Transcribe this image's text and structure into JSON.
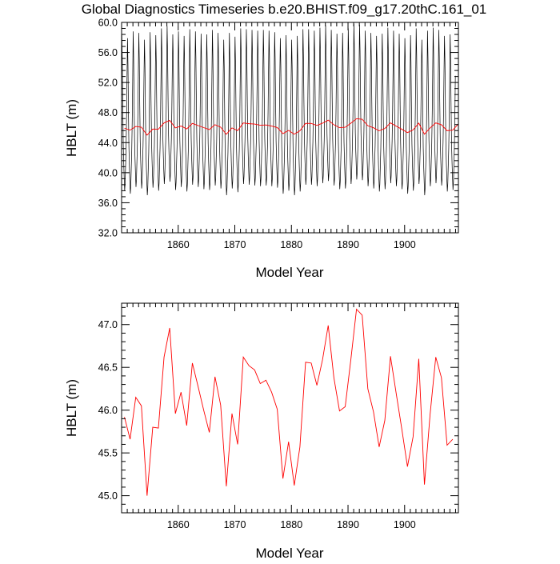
{
  "title": "Global Diagnostics Timeseries b.e20.BHIST.f09_g17.20thC.161_01",
  "chart_data": [
    {
      "type": "line",
      "xlabel": "Model Year",
      "ylabel": "HBLT (m)",
      "xlim": [
        1850,
        1909.5
      ],
      "ylim": [
        32.0,
        60.0
      ],
      "x_ticks": [
        1860,
        1870,
        1880,
        1890,
        1900
      ],
      "x_tick_labels": [
        "1860",
        "1870",
        "1880",
        "1890",
        "1900"
      ],
      "y_ticks": [
        32,
        36,
        40,
        44,
        48,
        52,
        56,
        60
      ],
      "y_tick_labels": [
        "32.0",
        "36.0",
        "40.0",
        "44.0",
        "48.0",
        "52.0",
        "56.0",
        "60.0"
      ],
      "grid": false,
      "series": [
        {
          "color": "#000000",
          "monthly_pattern": [
            58.5,
            55.0,
            49.0,
            44.0,
            41.5,
            39.5,
            37.8,
            38.8,
            41.2,
            43.5,
            47.5,
            53.0
          ],
          "annual_offsets": [
            -0.2,
            -0.6,
            0.3,
            0.1,
            -0.8,
            0.2,
            -0.2,
            0.7,
            1.0,
            -0.1,
            0.3,
            -0.3,
            0.6,
            0.3,
            0.0,
            -0.1,
            0.5,
            0.1,
            -0.8,
            0.1,
            -0.4,
            0.7,
            0.6,
            0.5,
            0.4,
            0.5,
            0.4,
            0.2,
            -0.6,
            -0.2,
            -0.8,
            -0.3,
            0.6,
            0.6,
            0.4,
            0.8,
            1.1,
            0.5,
            0.0,
            0.1,
            0.7,
            1.3,
            1.2,
            0.4,
            0.1,
            -0.3,
            0.0,
            0.8,
            0.4,
            0.0,
            -0.6,
            -0.2,
            0.7,
            -0.8,
            0.4,
            0.8,
            0.5,
            -0.3,
            -0.1
          ]
        },
        {
          "color": "#ff0000",
          "x": [
            1850.5,
            1851.5,
            1852.5,
            1853.5,
            1854.5,
            1855.5,
            1856.5,
            1857.5,
            1858.5,
            1859.5,
            1860.5,
            1861.5,
            1862.5,
            1863.5,
            1864.5,
            1865.5,
            1866.5,
            1867.5,
            1868.5,
            1869.5,
            1870.5,
            1871.5,
            1872.5,
            1873.5,
            1874.5,
            1875.5,
            1876.5,
            1877.5,
            1878.5,
            1879.5,
            1880.5,
            1881.5,
            1882.5,
            1883.5,
            1884.5,
            1885.5,
            1886.5,
            1887.5,
            1888.5,
            1889.5,
            1890.5,
            1891.5,
            1892.5,
            1893.5,
            1894.5,
            1895.5,
            1896.5,
            1897.5,
            1898.5,
            1899.5,
            1900.5,
            1901.5,
            1902.5,
            1903.5,
            1904.5,
            1905.5,
            1906.5,
            1907.5,
            1908.5,
            1909.5
          ],
          "values": [
            45.92,
            45.66,
            46.15,
            46.05,
            45.0,
            45.8,
            45.79,
            46.62,
            46.96,
            45.96,
            46.21,
            45.82,
            46.55,
            46.28,
            46.0,
            45.74,
            46.39,
            46.06,
            45.11,
            45.96,
            45.6,
            46.62,
            46.52,
            46.47,
            46.31,
            46.35,
            46.21,
            46.01,
            45.2,
            45.63,
            45.12,
            45.57,
            46.56,
            46.55,
            46.29,
            46.59,
            46.99,
            46.38,
            45.99,
            46.04,
            46.59,
            47.18,
            47.11,
            46.25,
            45.98,
            45.57,
            45.88,
            46.63,
            46.2,
            45.78,
            45.34,
            45.69,
            46.6,
            45.13,
            45.95,
            46.62,
            46.38,
            45.59,
            45.66,
            46.5
          ]
        }
      ]
    },
    {
      "type": "line",
      "xlabel": "Model Year",
      "ylabel": "HBLT (m)",
      "xlim": [
        1850,
        1909.5
      ],
      "ylim": [
        44.8,
        47.25
      ],
      "x_ticks": [
        1860,
        1870,
        1880,
        1890,
        1900
      ],
      "x_tick_labels": [
        "1860",
        "1870",
        "1880",
        "1890",
        "1900"
      ],
      "y_ticks": [
        45.0,
        45.5,
        46.0,
        46.5,
        47.0
      ],
      "y_tick_labels": [
        "45.0",
        "45.5",
        "46.0",
        "46.5",
        "47.0"
      ],
      "grid": false,
      "series": [
        {
          "color": "#ff0000",
          "x": [
            1850.5,
            1851.5,
            1852.5,
            1853.5,
            1854.5,
            1855.5,
            1856.5,
            1857.5,
            1858.5,
            1859.5,
            1860.5,
            1861.5,
            1862.5,
            1863.5,
            1864.5,
            1865.5,
            1866.5,
            1867.5,
            1868.5,
            1869.5,
            1870.5,
            1871.5,
            1872.5,
            1873.5,
            1874.5,
            1875.5,
            1876.5,
            1877.5,
            1878.5,
            1879.5,
            1880.5,
            1881.5,
            1882.5,
            1883.5,
            1884.5,
            1885.5,
            1886.5,
            1887.5,
            1888.5,
            1889.5,
            1890.5,
            1891.5,
            1892.5,
            1893.5,
            1894.5,
            1895.5,
            1896.5,
            1897.5,
            1898.5,
            1899.5,
            1900.5,
            1901.5,
            1902.5,
            1903.5,
            1904.5,
            1905.5,
            1906.5,
            1907.5,
            1908.5
          ],
          "values": [
            45.92,
            45.66,
            46.15,
            46.05,
            45.0,
            45.8,
            45.79,
            46.62,
            46.96,
            45.96,
            46.21,
            45.82,
            46.55,
            46.28,
            46.0,
            45.74,
            46.39,
            46.06,
            45.11,
            45.96,
            45.6,
            46.62,
            46.52,
            46.47,
            46.31,
            46.35,
            46.21,
            46.01,
            45.2,
            45.63,
            45.12,
            45.57,
            46.56,
            46.55,
            46.29,
            46.59,
            46.99,
            46.38,
            45.99,
            46.04,
            46.59,
            47.18,
            47.11,
            46.25,
            45.98,
            45.57,
            45.88,
            46.63,
            46.2,
            45.78,
            45.34,
            45.69,
            46.6,
            45.13,
            45.95,
            46.62,
            46.38,
            45.59,
            45.66
          ]
        }
      ]
    }
  ]
}
